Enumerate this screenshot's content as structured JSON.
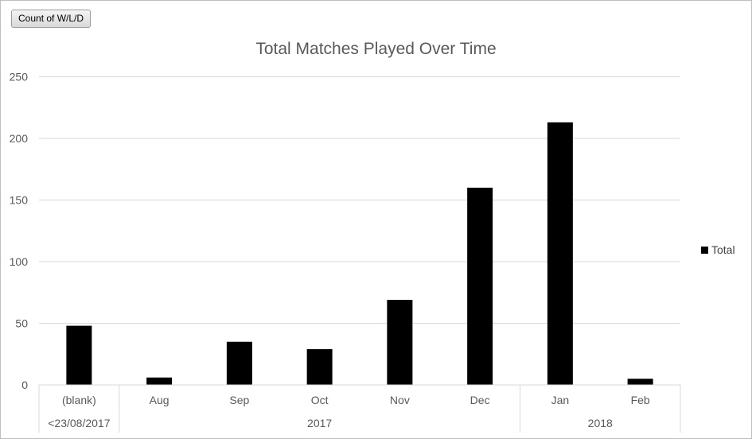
{
  "field_button": {
    "label": "Count of W/L/D"
  },
  "chart_data": {
    "type": "bar",
    "title": "Total Matches Played Over Time",
    "xlabel": "",
    "ylabel": "",
    "ylim": [
      0,
      250
    ],
    "yticks": [
      0,
      50,
      100,
      150,
      200,
      250
    ],
    "categories": [
      "(blank)",
      "Aug",
      "Sep",
      "Oct",
      "Nov",
      "Dec",
      "Jan",
      "Feb"
    ],
    "groups": [
      {
        "label": "<23/08/2017",
        "span": 1
      },
      {
        "label": "2017",
        "span": 5
      },
      {
        "label": "2018",
        "span": 2
      }
    ],
    "series": [
      {
        "name": "Total",
        "color": "#000000",
        "values": [
          48,
          6,
          35,
          29,
          69,
          160,
          213,
          5
        ]
      }
    ],
    "grid": true,
    "legend_position": "right"
  }
}
